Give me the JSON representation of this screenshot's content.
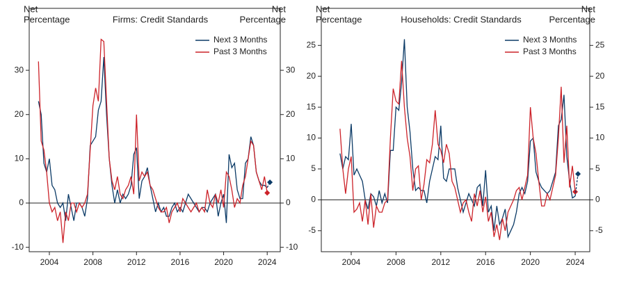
{
  "chart_data": [
    {
      "type": "line",
      "title": "Firms: Credit Standards",
      "ylabel": [
        "Net",
        "Percentage"
      ],
      "y2label": [
        "Net",
        "Percentage"
      ],
      "x": [
        2003,
        2003.25,
        2003.5,
        2003.75,
        2004,
        2004.25,
        2004.5,
        2004.75,
        2005,
        2005.25,
        2005.5,
        2005.75,
        2006,
        2006.25,
        2006.5,
        2006.75,
        2007,
        2007.25,
        2007.5,
        2007.75,
        2008,
        2008.25,
        2008.5,
        2008.75,
        2009,
        2009.25,
        2009.5,
        2009.75,
        2010,
        2010.25,
        2010.5,
        2010.75,
        2011,
        2011.25,
        2011.5,
        2011.75,
        2012,
        2012.25,
        2012.5,
        2012.75,
        2013,
        2013.25,
        2013.5,
        2013.75,
        2014,
        2014.25,
        2014.5,
        2014.75,
        2015,
        2015.25,
        2015.5,
        2015.75,
        2016,
        2016.25,
        2016.5,
        2016.75,
        2017,
        2017.25,
        2017.5,
        2017.75,
        2018,
        2018.25,
        2018.5,
        2018.75,
        2019,
        2019.25,
        2019.5,
        2019.75,
        2020,
        2020.25,
        2020.5,
        2020.75,
        2021,
        2021.25,
        2021.5,
        2021.75,
        2022,
        2022.25,
        2022.5,
        2022.75,
        2023,
        2023.25,
        2023.5,
        2023.75,
        2024
      ],
      "series": [
        {
          "name": "Next 3 Months",
          "color": "#0b3a66",
          "values": [
            23,
            20,
            9,
            7,
            10,
            4,
            3,
            0,
            -1,
            0,
            -4,
            2,
            -1,
            -4,
            0,
            0,
            -1,
            -3,
            1,
            13,
            14,
            15,
            21,
            23,
            33,
            20,
            10,
            4,
            0,
            3,
            0,
            2,
            1,
            2,
            4,
            11,
            12.5,
            1,
            5,
            6,
            8,
            4,
            1,
            -2,
            0,
            -2,
            -1,
            -3,
            -3,
            -1,
            0,
            -2,
            -1,
            -2,
            0,
            2,
            1,
            0,
            -1,
            -2,
            -1,
            -1,
            -2,
            0,
            1,
            2,
            -3,
            0,
            2,
            -4.5,
            11,
            8,
            9,
            3,
            1,
            1,
            9,
            10,
            15,
            13,
            7,
            5,
            4,
            4,
            3.5
          ]
        },
        {
          "name": "Past 3 Months",
          "color": "#cc2229",
          "end_marker": true,
          "values": [
            32,
            14,
            12,
            7,
            0,
            -2,
            -1,
            -4,
            -2,
            -9,
            -2,
            -4,
            0,
            0,
            -2,
            0,
            -1,
            0,
            2,
            12,
            22,
            26,
            23,
            37,
            36.5,
            23,
            10,
            5,
            3,
            6,
            2,
            1,
            3,
            4,
            6,
            2,
            20,
            5,
            7,
            6,
            7,
            4,
            3,
            1,
            -1,
            -2,
            -2,
            -1,
            -4.5,
            -2,
            -1,
            0,
            -2,
            1,
            0,
            -1,
            -2,
            -1,
            0,
            -2,
            -1,
            -2,
            3,
            0,
            -1,
            2,
            0,
            3,
            -1,
            7,
            6,
            3,
            -1,
            1,
            0,
            4,
            6,
            10,
            14,
            13,
            7,
            5,
            3,
            6,
            2.3
          ]
        }
      ],
      "forecast": {
        "x": [
          2024,
          2024.25
        ],
        "values": [
          3.5,
          4.7
        ],
        "color": "#0b3a66"
      },
      "xlim": [
        2002.15,
        2025.2
      ],
      "xticks": [
        2004,
        2008,
        2012,
        2016,
        2020,
        2024
      ],
      "ylim": [
        -11,
        44
      ],
      "yticks": [
        -10,
        0,
        10,
        20,
        30
      ],
      "legend": "upper right"
    },
    {
      "type": "line",
      "title": "Households: Credit Standards",
      "ylabel": [
        "Net",
        "Percentage"
      ],
      "y2label": [
        "Net",
        "Percentage"
      ],
      "x": [
        2003,
        2003.25,
        2003.5,
        2003.75,
        2004,
        2004.25,
        2004.5,
        2004.75,
        2005,
        2005.25,
        2005.5,
        2005.75,
        2006,
        2006.25,
        2006.5,
        2006.75,
        2007,
        2007.25,
        2007.5,
        2007.75,
        2008,
        2008.25,
        2008.5,
        2008.75,
        2009,
        2009.25,
        2009.5,
        2009.75,
        2010,
        2010.25,
        2010.5,
        2010.75,
        2011,
        2011.25,
        2011.5,
        2011.75,
        2012,
        2012.25,
        2012.5,
        2012.75,
        2013,
        2013.25,
        2013.5,
        2013.75,
        2014,
        2014.25,
        2014.5,
        2014.75,
        2015,
        2015.25,
        2015.5,
        2015.75,
        2016,
        2016.25,
        2016.5,
        2016.75,
        2017,
        2017.25,
        2017.5,
        2017.75,
        2018,
        2018.25,
        2018.5,
        2018.75,
        2019,
        2019.25,
        2019.5,
        2019.75,
        2020,
        2020.25,
        2020.5,
        2020.75,
        2021,
        2021.25,
        2021.5,
        2021.75,
        2022,
        2022.25,
        2022.5,
        2022.75,
        2023,
        2023.25,
        2023.5,
        2023.75,
        2024
      ],
      "series": [
        {
          "name": "Next 3 Months",
          "color": "#0b3a66",
          "values": [
            7.5,
            5,
            7,
            6.5,
            12.3,
            4,
            5,
            4,
            3,
            0,
            -1.5,
            1,
            0.5,
            -1,
            1.5,
            -0.5,
            1,
            -0.5,
            8,
            8,
            15,
            14.5,
            19,
            26,
            15,
            11,
            5,
            1.5,
            2,
            1.5,
            1.5,
            -0.5,
            3,
            5,
            7,
            6.5,
            12,
            3.5,
            3,
            5,
            5,
            5,
            2,
            0,
            -2,
            -0.5,
            1,
            0,
            -1,
            2,
            2.5,
            -1,
            4.8,
            -2,
            -1,
            -5,
            -1,
            -4,
            -3,
            -1.5,
            -6,
            -5,
            -4,
            -2,
            1,
            2,
            1,
            3,
            9.5,
            10,
            4.5,
            3,
            2,
            1.5,
            1,
            1.5,
            3,
            4.5,
            12,
            13,
            17,
            7,
            3,
            0.3,
            0.6
          ]
        },
        {
          "name": "Past 3 Months",
          "color": "#cc2229",
          "end_marker": true,
          "values": [
            11.5,
            5,
            1,
            5,
            7,
            -2,
            -1.5,
            -0.5,
            -3.5,
            0,
            -4,
            1,
            -4.5,
            -1,
            -2,
            -2,
            -0.5,
            0,
            10,
            18,
            16,
            15.5,
            22.5,
            15,
            10,
            7,
            1.5,
            5,
            5.5,
            0,
            2.5,
            6.5,
            6,
            9,
            14.5,
            9,
            8,
            6,
            9,
            7.5,
            3,
            2,
            0,
            -2,
            -0.5,
            0,
            -2,
            -3.5,
            1,
            -1,
            1.5,
            -2,
            0.5,
            -3.5,
            -2,
            -6,
            -4,
            -6.5,
            -3,
            -5,
            -2,
            -1,
            0,
            1.5,
            2,
            0,
            2,
            4,
            15,
            10,
            7.5,
            3,
            -1,
            -1,
            1,
            0,
            2,
            4,
            10,
            18.3,
            6,
            12,
            2,
            5.5,
            1.3
          ]
        }
      ],
      "forecast": {
        "x": [
          2024,
          2024.25
        ],
        "values": [
          0.6,
          4.2
        ],
        "color": "#0b3a66"
      },
      "xlim": [
        2001.33,
        2025.3
      ],
      "xticks": [
        2004,
        2008,
        2012,
        2016,
        2020,
        2024
      ],
      "ylim": [
        -8.4,
        31
      ],
      "yticks": [
        -5,
        0,
        5,
        10,
        15,
        20,
        25
      ],
      "legend": "upper right"
    }
  ]
}
